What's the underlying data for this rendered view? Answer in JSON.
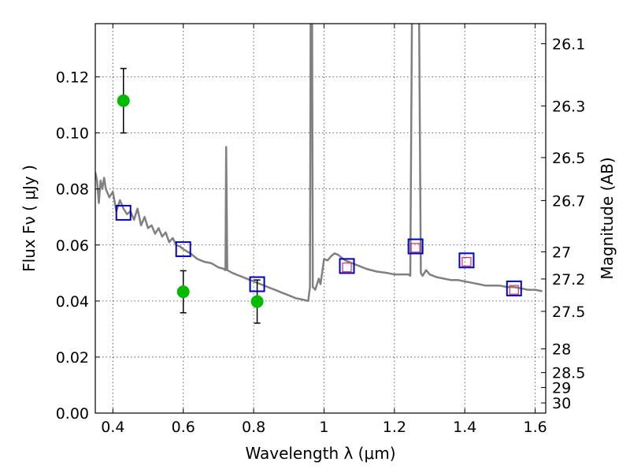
{
  "chart_data": {
    "type": "scatter",
    "title": "",
    "xlabel": "Wavelength  λ (μm)",
    "ylabel": "Flux  Fν  ( μJy )",
    "ylabel_right": "Magnitude (AB)",
    "xlim": [
      0.35,
      1.63
    ],
    "ylim": [
      0,
      0.139
    ],
    "grid": true,
    "x_ticks": [
      0.4,
      0.6,
      0.8,
      1.0,
      1.2,
      1.4,
      1.6
    ],
    "x_tick_labels": [
      "0.4",
      "0.6",
      "0.8",
      "1",
      "1.2",
      "1.4",
      "1.6"
    ],
    "y_ticks": [
      0,
      0.02,
      0.04,
      0.06,
      0.08,
      0.1,
      0.12
    ],
    "y_tick_labels": [
      "0.00",
      "0.02",
      "0.04",
      "0.06",
      "0.08",
      "0.10",
      "0.12"
    ],
    "right_ticks": [
      {
        "mag": 26.1,
        "label": "26.1"
      },
      {
        "mag": 26.3,
        "label": "26.3"
      },
      {
        "mag": 26.5,
        "label": "26.5"
      },
      {
        "mag": 26.7,
        "label": "26.7"
      },
      {
        "mag": 27.0,
        "label": "27"
      },
      {
        "mag": 27.2,
        "label": "27.2"
      },
      {
        "mag": 27.5,
        "label": "27.5"
      },
      {
        "mag": 28.0,
        "label": "28"
      },
      {
        "mag": 28.5,
        "label": "28.5"
      },
      {
        "mag": 29.0,
        "label": "29"
      },
      {
        "mag": 30.0,
        "label": "30"
      }
    ],
    "series": [
      {
        "kind": "line",
        "color": "#808080",
        "points": [
          [
            0.35,
            0.086
          ],
          [
            0.355,
            0.083
          ],
          [
            0.36,
            0.075
          ],
          [
            0.365,
            0.083
          ],
          [
            0.37,
            0.08
          ],
          [
            0.375,
            0.084
          ],
          [
            0.38,
            0.08
          ],
          [
            0.39,
            0.077
          ],
          [
            0.4,
            0.079
          ],
          [
            0.41,
            0.072
          ],
          [
            0.42,
            0.076
          ],
          [
            0.43,
            0.073
          ],
          [
            0.44,
            0.071
          ],
          [
            0.45,
            0.072
          ],
          [
            0.46,
            0.069
          ],
          [
            0.47,
            0.073
          ],
          [
            0.48,
            0.067
          ],
          [
            0.49,
            0.07
          ],
          [
            0.5,
            0.066
          ],
          [
            0.51,
            0.067
          ],
          [
            0.52,
            0.064
          ],
          [
            0.53,
            0.066
          ],
          [
            0.54,
            0.063
          ],
          [
            0.55,
            0.0645
          ],
          [
            0.56,
            0.061
          ],
          [
            0.57,
            0.0625
          ],
          [
            0.58,
            0.06
          ],
          [
            0.59,
            0.0595
          ],
          [
            0.6,
            0.0585
          ],
          [
            0.62,
            0.057
          ],
          [
            0.64,
            0.055
          ],
          [
            0.66,
            0.054
          ],
          [
            0.68,
            0.0535
          ],
          [
            0.7,
            0.052
          ],
          [
            0.715,
            0.0515
          ],
          [
            0.72,
            0.051
          ],
          [
            0.722,
            0.095
          ],
          [
            0.725,
            0.051
          ],
          [
            0.74,
            0.05
          ],
          [
            0.76,
            0.049
          ],
          [
            0.78,
            0.048
          ],
          [
            0.8,
            0.047
          ],
          [
            0.82,
            0.046
          ],
          [
            0.84,
            0.045
          ],
          [
            0.86,
            0.044
          ],
          [
            0.88,
            0.043
          ],
          [
            0.9,
            0.042
          ],
          [
            0.92,
            0.041
          ],
          [
            0.94,
            0.0405
          ],
          [
            0.955,
            0.04
          ],
          [
            0.96,
            0.045
          ],
          [
            0.962,
            0.145
          ],
          [
            0.966,
            0.145
          ],
          [
            0.968,
            0.045
          ],
          [
            0.975,
            0.044
          ],
          [
            0.985,
            0.048
          ],
          [
            0.99,
            0.046
          ],
          [
            1.0,
            0.055
          ],
          [
            1.01,
            0.0545
          ],
          [
            1.02,
            0.056
          ],
          [
            1.03,
            0.057
          ],
          [
            1.04,
            0.0565
          ],
          [
            1.06,
            0.0545
          ],
          [
            1.08,
            0.0535
          ],
          [
            1.1,
            0.0525
          ],
          [
            1.12,
            0.0515
          ],
          [
            1.15,
            0.0505
          ],
          [
            1.18,
            0.05
          ],
          [
            1.2,
            0.0495
          ],
          [
            1.24,
            0.0495
          ],
          [
            1.245,
            0.049
          ],
          [
            1.25,
            0.145
          ],
          [
            1.27,
            0.145
          ],
          [
            1.275,
            0.05
          ],
          [
            1.28,
            0.049
          ],
          [
            1.29,
            0.051
          ],
          [
            1.3,
            0.0495
          ],
          [
            1.32,
            0.0485
          ],
          [
            1.34,
            0.048
          ],
          [
            1.36,
            0.0475
          ],
          [
            1.38,
            0.0475
          ],
          [
            1.4,
            0.047
          ],
          [
            1.42,
            0.0465
          ],
          [
            1.44,
            0.046
          ],
          [
            1.46,
            0.0455
          ],
          [
            1.48,
            0.0455
          ],
          [
            1.5,
            0.0455
          ],
          [
            1.52,
            0.045
          ],
          [
            1.54,
            0.045
          ],
          [
            1.56,
            0.0445
          ],
          [
            1.58,
            0.044
          ],
          [
            1.6,
            0.044
          ],
          [
            1.62,
            0.0435
          ]
        ]
      },
      {
        "kind": "open-square",
        "color": "#0000cc",
        "points": [
          [
            0.43,
            0.0715
          ],
          [
            0.6,
            0.0585
          ],
          [
            0.81,
            0.046
          ],
          [
            1.065,
            0.0525
          ],
          [
            1.26,
            0.0595
          ],
          [
            1.405,
            0.0545
          ],
          [
            1.54,
            0.0445
          ]
        ]
      },
      {
        "kind": "small-square",
        "color": "#cc3355",
        "points": [
          [
            1.065,
            0.052
          ],
          [
            1.26,
            0.059
          ],
          [
            1.405,
            0.054
          ],
          [
            1.54,
            0.044
          ]
        ]
      },
      {
        "kind": "circle-errorbar",
        "color": "#00bb00",
        "points": [
          {
            "x": 0.43,
            "y": 0.1115,
            "err": 0.0115
          },
          {
            "x": 0.6,
            "y": 0.0433,
            "err": 0.0075
          },
          {
            "x": 0.81,
            "y": 0.0398,
            "err": 0.0077
          }
        ]
      }
    ]
  }
}
